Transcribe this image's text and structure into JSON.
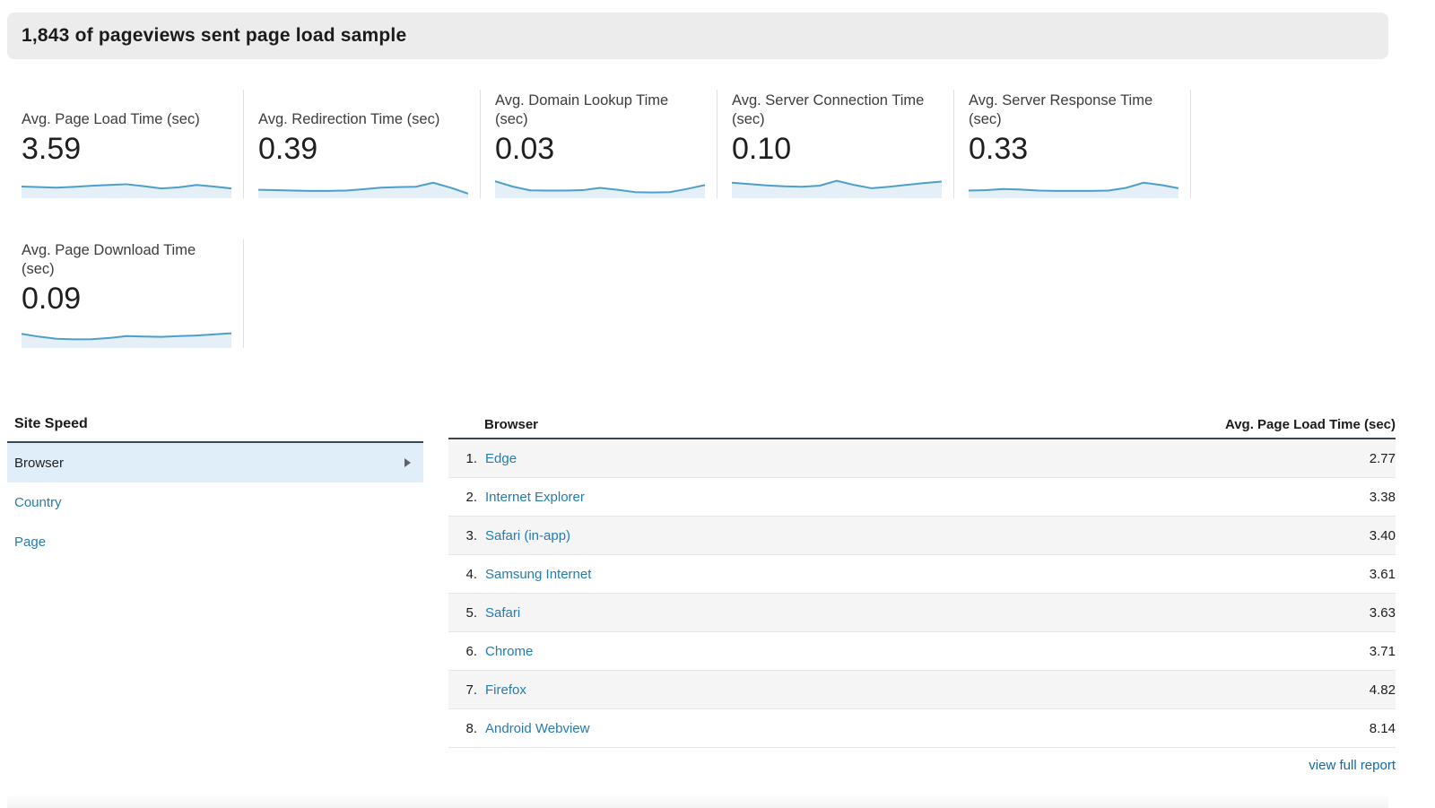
{
  "header": {
    "title": "1,843 of pageviews sent page load sample"
  },
  "colors": {
    "spark_line": "#4d9fcb",
    "spark_fill": "#e4eff7",
    "link": "#257cab",
    "footer_link": "#15699c",
    "selected_row_bg": "#dfeef8",
    "header_bg": "#ececec"
  },
  "scorecards": [
    {
      "label": "Avg. Page Load Time (sec)",
      "value": "3.59",
      "spark": [
        0.5,
        0.47,
        0.44,
        0.48,
        0.54,
        0.58,
        0.62,
        0.52,
        0.4,
        0.46,
        0.58,
        0.5,
        0.4
      ]
    },
    {
      "label": "Avg. Redirection Time (sec)",
      "value": "0.39",
      "spark": [
        0.33,
        0.31,
        0.29,
        0.27,
        0.27,
        0.29,
        0.36,
        0.44,
        0.47,
        0.49,
        0.7,
        0.44,
        0.13
      ]
    },
    {
      "label": "Avg. Domain Lookup Time (sec)",
      "value": "0.03",
      "spark": [
        0.78,
        0.5,
        0.3,
        0.29,
        0.29,
        0.31,
        0.43,
        0.33,
        0.21,
        0.19,
        0.21,
        0.38,
        0.58
      ]
    },
    {
      "label": "Avg. Server Connection Time (sec)",
      "value": "0.10",
      "spark": [
        0.7,
        0.63,
        0.56,
        0.51,
        0.49,
        0.54,
        0.8,
        0.58,
        0.41,
        0.49,
        0.59,
        0.68,
        0.76
      ]
    },
    {
      "label": "Avg. Server Response Time (sec)",
      "value": "0.33",
      "spark": [
        0.29,
        0.31,
        0.37,
        0.34,
        0.29,
        0.27,
        0.27,
        0.27,
        0.29,
        0.43,
        0.7,
        0.58,
        0.41
      ]
    },
    {
      "label": "Avg. Page Download Time (sec)",
      "value": "0.09",
      "spark": [
        0.63,
        0.48,
        0.37,
        0.34,
        0.35,
        0.41,
        0.51,
        0.49,
        0.47,
        0.51,
        0.54,
        0.6,
        0.66
      ]
    }
  ],
  "site_speed": {
    "title": "Site Speed",
    "items": [
      {
        "label": "Browser"
      },
      {
        "label": "Country"
      },
      {
        "label": "Page"
      }
    ]
  },
  "table": {
    "columns": {
      "name": "Browser",
      "value": "Avg. Page Load Time (sec)"
    },
    "rows": [
      {
        "rank": "1.",
        "name": "Edge",
        "value": "2.77"
      },
      {
        "rank": "2.",
        "name": "Internet Explorer",
        "value": "3.38"
      },
      {
        "rank": "3.",
        "name": "Safari (in-app)",
        "value": "3.40"
      },
      {
        "rank": "4.",
        "name": "Samsung Internet",
        "value": "3.61"
      },
      {
        "rank": "5.",
        "name": "Safari",
        "value": "3.63"
      },
      {
        "rank": "6.",
        "name": "Chrome",
        "value": "3.71"
      },
      {
        "rank": "7.",
        "name": "Firefox",
        "value": "4.82"
      },
      {
        "rank": "8.",
        "name": "Android Webview",
        "value": "8.14"
      }
    ],
    "footer_link": "view full report"
  },
  "chart_data": [
    {
      "type": "area",
      "title": "Avg. Page Load Time (sec)",
      "summary_value": 3.59,
      "x": [
        1,
        2,
        3,
        4,
        5,
        6,
        7,
        8,
        9,
        10,
        11,
        12,
        13
      ],
      "values": [
        0.5,
        0.47,
        0.44,
        0.48,
        0.54,
        0.58,
        0.62,
        0.52,
        0.4,
        0.46,
        0.58,
        0.5,
        0.4
      ]
    },
    {
      "type": "area",
      "title": "Avg. Redirection Time (sec)",
      "summary_value": 0.39,
      "x": [
        1,
        2,
        3,
        4,
        5,
        6,
        7,
        8,
        9,
        10,
        11,
        12,
        13
      ],
      "values": [
        0.33,
        0.31,
        0.29,
        0.27,
        0.27,
        0.29,
        0.36,
        0.44,
        0.47,
        0.49,
        0.7,
        0.44,
        0.13
      ]
    },
    {
      "type": "area",
      "title": "Avg. Domain Lookup Time (sec)",
      "summary_value": 0.03,
      "x": [
        1,
        2,
        3,
        4,
        5,
        6,
        7,
        8,
        9,
        10,
        11,
        12,
        13
      ],
      "values": [
        0.78,
        0.5,
        0.3,
        0.29,
        0.29,
        0.31,
        0.43,
        0.33,
        0.21,
        0.19,
        0.21,
        0.38,
        0.58
      ]
    },
    {
      "type": "area",
      "title": "Avg. Server Connection Time (sec)",
      "summary_value": 0.1,
      "x": [
        1,
        2,
        3,
        4,
        5,
        6,
        7,
        8,
        9,
        10,
        11,
        12,
        13
      ],
      "values": [
        0.7,
        0.63,
        0.56,
        0.51,
        0.49,
        0.54,
        0.8,
        0.58,
        0.41,
        0.49,
        0.59,
        0.68,
        0.76
      ]
    },
    {
      "type": "area",
      "title": "Avg. Server Response Time (sec)",
      "summary_value": 0.33,
      "x": [
        1,
        2,
        3,
        4,
        5,
        6,
        7,
        8,
        9,
        10,
        11,
        12,
        13
      ],
      "values": [
        0.29,
        0.31,
        0.37,
        0.34,
        0.29,
        0.27,
        0.27,
        0.27,
        0.29,
        0.43,
        0.7,
        0.58,
        0.41
      ]
    },
    {
      "type": "area",
      "title": "Avg. Page Download Time (sec)",
      "summary_value": 0.09,
      "x": [
        1,
        2,
        3,
        4,
        5,
        6,
        7,
        8,
        9,
        10,
        11,
        12,
        13
      ],
      "values": [
        0.63,
        0.48,
        0.37,
        0.34,
        0.35,
        0.41,
        0.51,
        0.49,
        0.47,
        0.51,
        0.54,
        0.6,
        0.66
      ]
    },
    {
      "type": "table",
      "title": "Site Speed by Browser",
      "columns": [
        "Browser",
        "Avg. Page Load Time (sec)"
      ],
      "categories": [
        "Edge",
        "Internet Explorer",
        "Safari (in-app)",
        "Samsung Internet",
        "Safari",
        "Chrome",
        "Firefox",
        "Android Webview"
      ],
      "values": [
        2.77,
        3.38,
        3.4,
        3.61,
        3.63,
        3.71,
        4.82,
        8.14
      ]
    }
  ]
}
